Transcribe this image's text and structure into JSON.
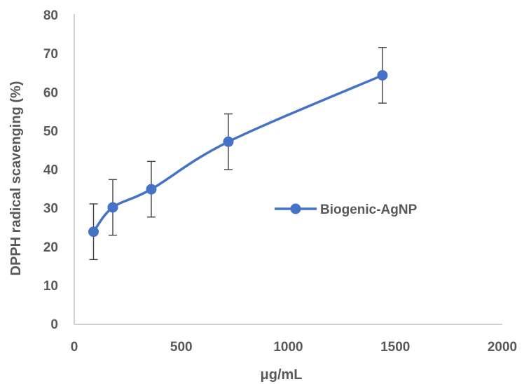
{
  "chart_data": {
    "type": "scatter",
    "title": "",
    "xlabel": "μg/mL",
    "ylabel": "DPPH radical scavenging  (%)",
    "xlim": [
      0,
      2000
    ],
    "ylim": [
      0,
      80
    ],
    "x_ticks": [
      0,
      500,
      1000,
      1500,
      2000
    ],
    "y_ticks": [
      0,
      10,
      20,
      30,
      40,
      50,
      60,
      70,
      80
    ],
    "grid": false,
    "legend_position": "right",
    "series": [
      {
        "name": "Biogenic-AgNP",
        "color": "#4472C4",
        "line": "smooth",
        "marker": "circle",
        "x": [
          90,
          180,
          360,
          720,
          1440
        ],
        "y": [
          24,
          30.3,
          35,
          47.3,
          64.5
        ],
        "error": [
          7.2,
          7.2,
          7.2,
          7.2,
          7.2
        ]
      }
    ]
  }
}
